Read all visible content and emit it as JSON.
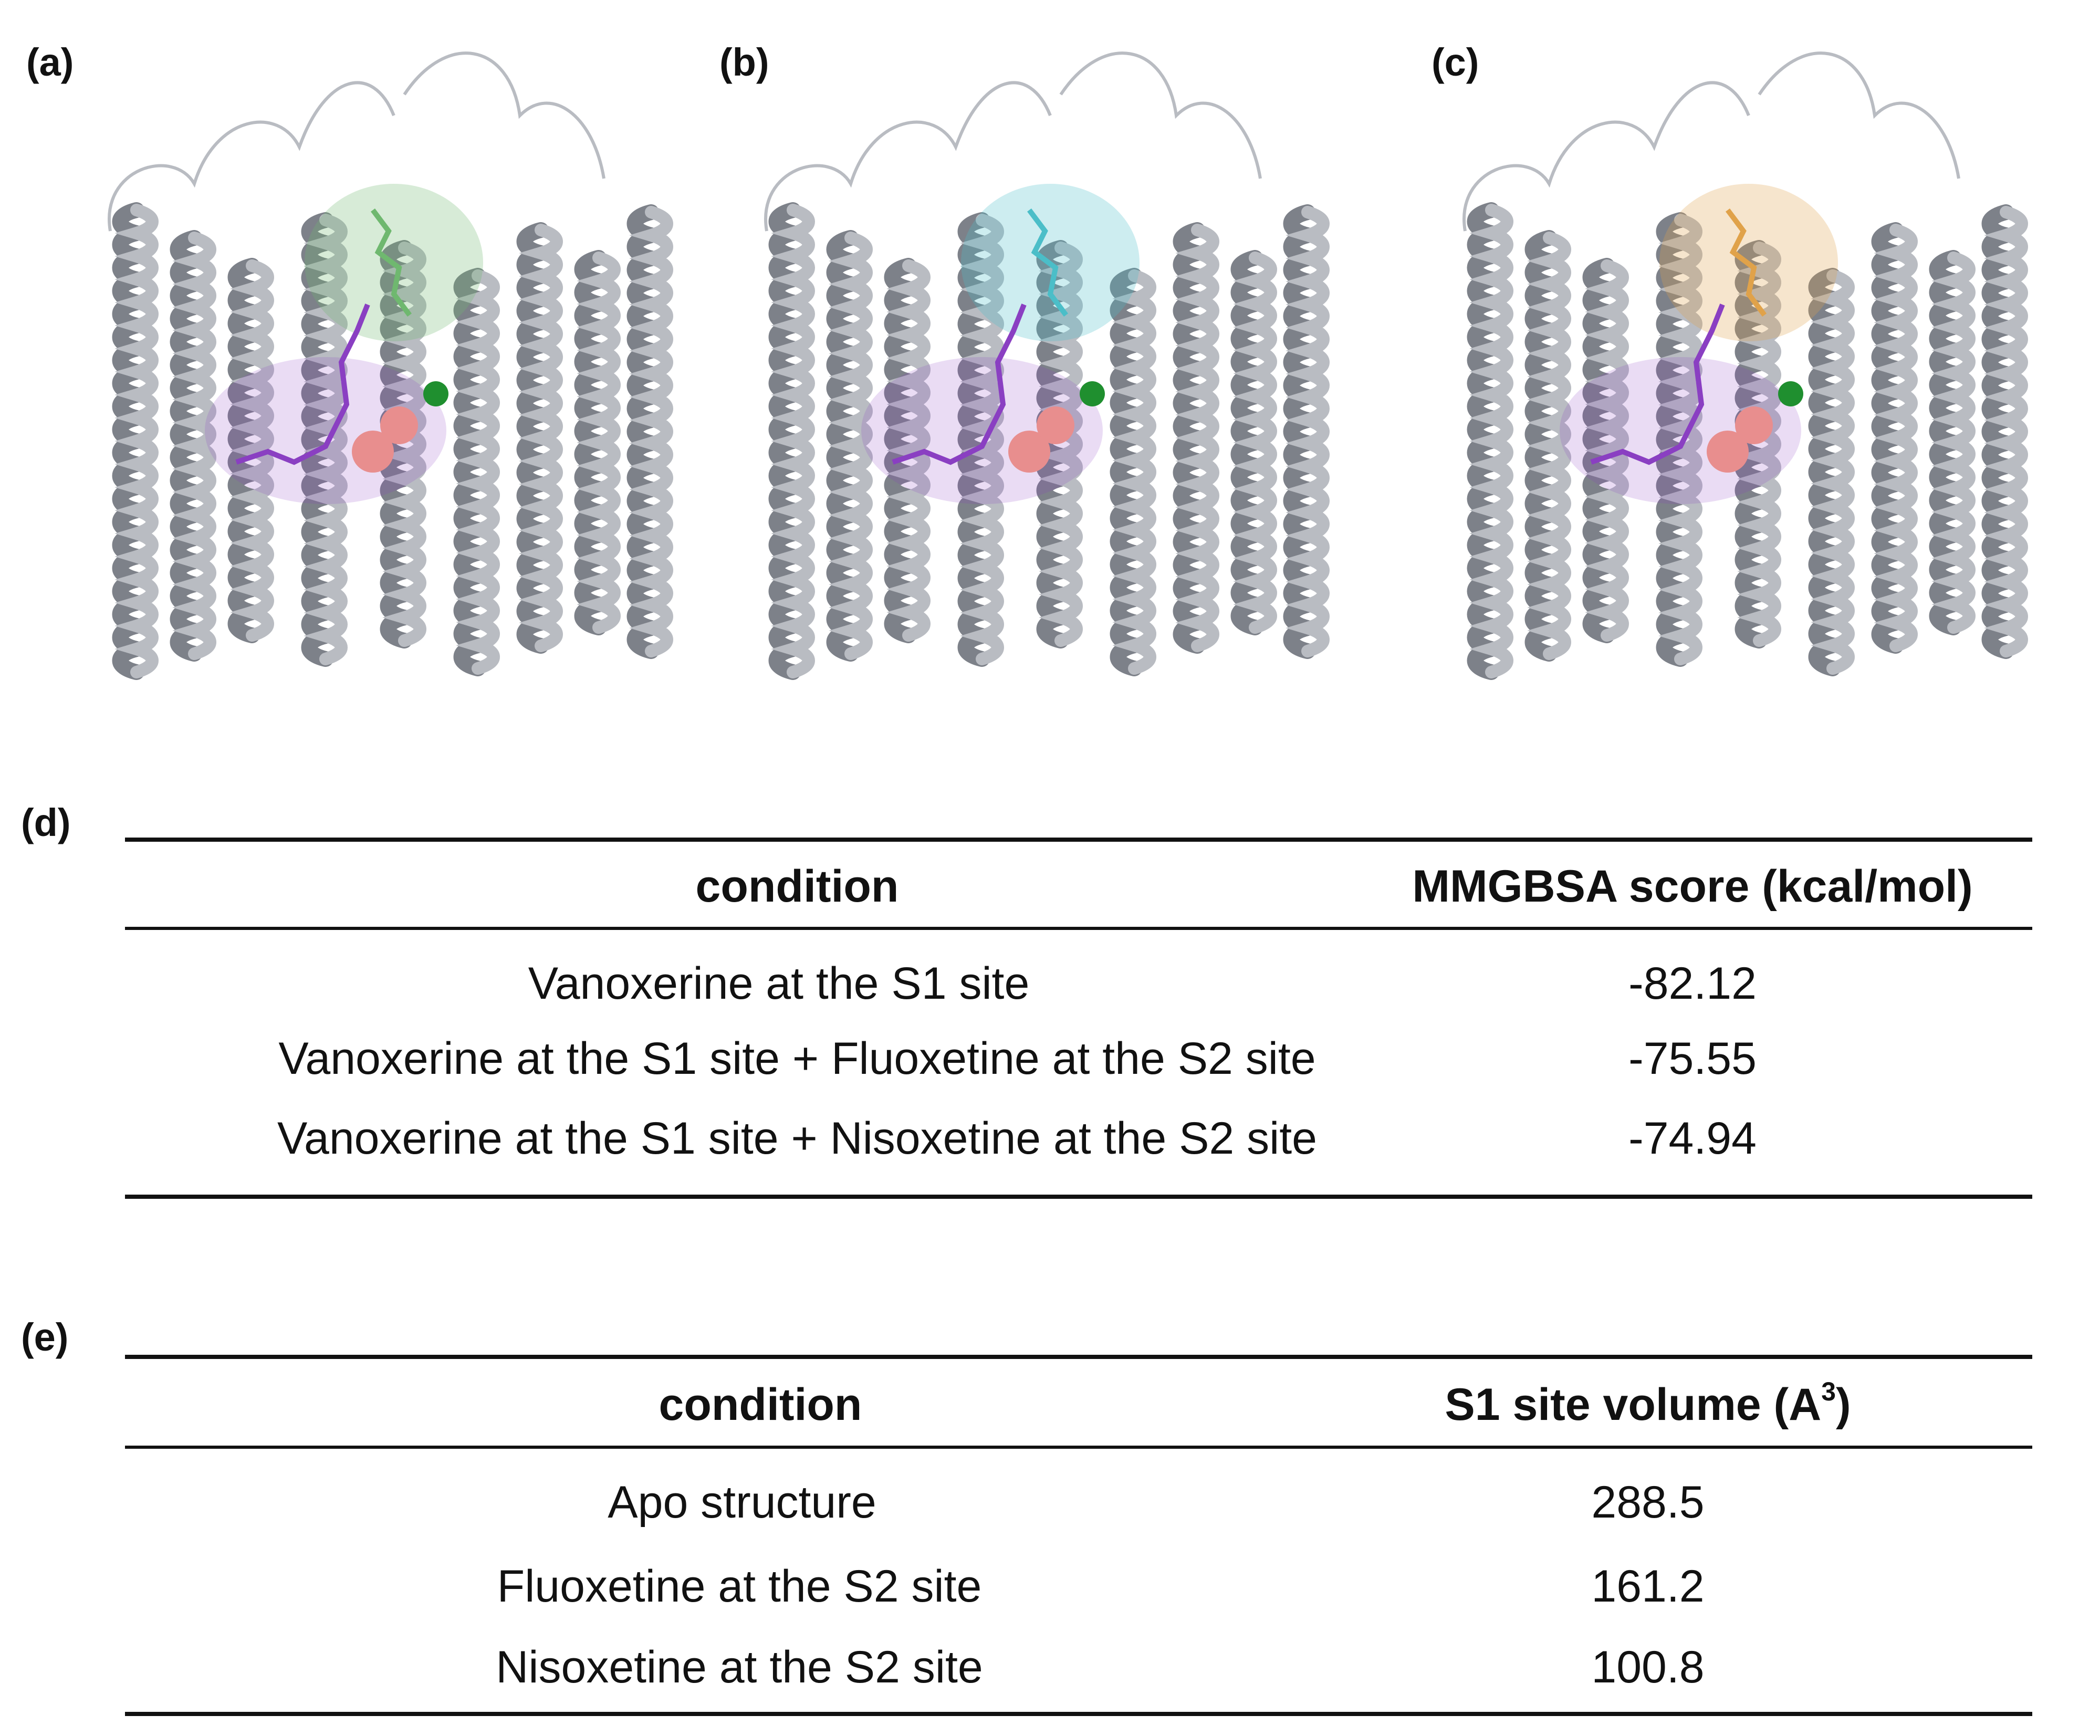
{
  "panels": {
    "a": {
      "label": "(a)"
    },
    "b": {
      "label": "(b)"
    },
    "c": {
      "label": "(c)"
    },
    "d": {
      "label": "(d)"
    },
    "e": {
      "label": "(e)"
    }
  },
  "colors": {
    "protein": "#b9bcc2",
    "protein_shadow": "#7d8189",
    "ligand_s1": "#8a3fc2",
    "s2_site_a": "#6fb86f",
    "ligand_fluoxetine": "#4bbec8",
    "ligand_nisoxetine": "#e0a24a",
    "ion_sodium": "#e88e8e",
    "ion_chloride": "#1f8f2f"
  },
  "table_d": {
    "headers": [
      "condition",
      "MMGBSA score (kcal/mol)"
    ],
    "rows": [
      {
        "condition": "Vanoxerine at the S1 site",
        "value": "-82.12"
      },
      {
        "condition": "Vanoxerine at the S1 site + Fluoxetine at the S2 site",
        "value": "-75.55"
      },
      {
        "condition": "Vanoxerine at the S1 site + Nisoxetine at the S2 site",
        "value": "-74.94"
      }
    ]
  },
  "table_e": {
    "headers": [
      "condition",
      "S1 site volume (A",
      "3",
      ")"
    ],
    "rows": [
      {
        "condition": "Apo structure",
        "value": "288.5"
      },
      {
        "condition": "Fluoxetine at the S2 site",
        "value": "161.2"
      },
      {
        "condition": "Nisoxetine at the S2 site",
        "value": "100.8"
      }
    ]
  }
}
